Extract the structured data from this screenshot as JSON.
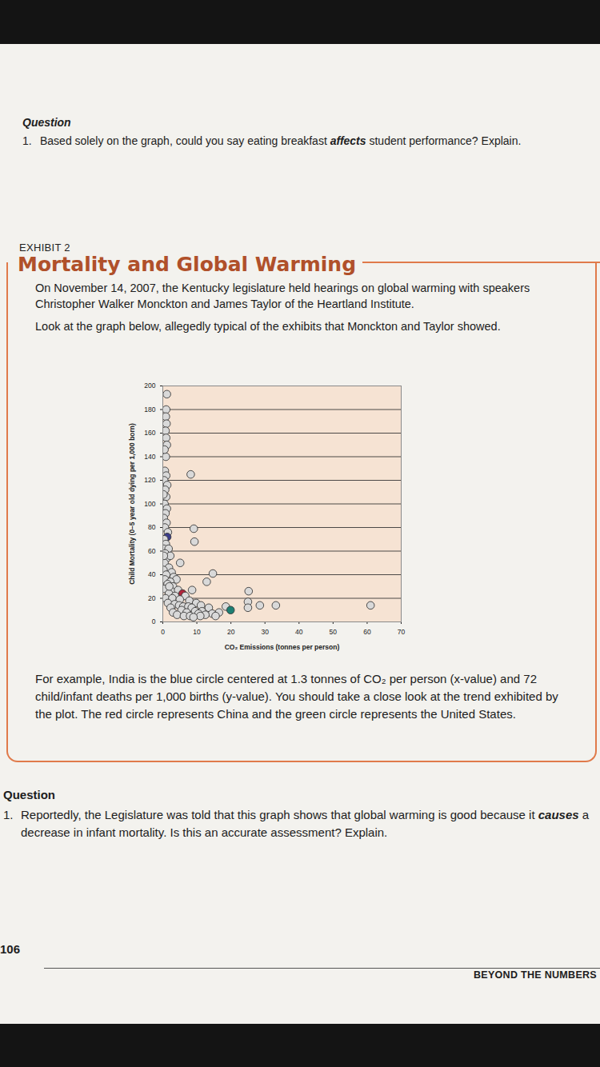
{
  "question_top": {
    "heading": "Question",
    "number": "1.",
    "text_before": "Based solely on the graph, could you say eating breakfast ",
    "emphasis": "affects",
    "text_after": " student performance? Explain."
  },
  "exhibit": {
    "label": "EXHIBIT 2",
    "title": "Mortality and Global Warming",
    "paragraphs": [
      "On November 14, 2007, the Kentucky legislature held hearings on global warming with speakers Christopher Walker Monckton and James Taylor of the Heartland Institute.",
      "Look at the graph below, allegedly typical of the exhibits that Monckton and Taylor showed."
    ],
    "caption": "For example, India is the blue circle centered at 1.3 tonnes of CO₂ per person (x-value) and 72 child/infant deaths per 1,000 births (y-value). You should take a close look at the trend exhibited by the plot. The red circle represents China and the green circle represents the United States."
  },
  "chart_data": {
    "type": "scatter",
    "x_label": "CO₂ Emissions (tonnes per person)",
    "y_label": "Child Mortality (0–5 year old dying per 1,000 born)",
    "x": [
      1.2,
      1.0,
      0.9,
      1.1,
      0.8,
      1.0,
      1.2,
      0.9,
      0.6,
      1.0,
      8.2,
      0.4,
      1.3,
      0.7,
      1.0,
      0.5,
      1.2,
      0.8,
      0.3,
      1.1,
      0.6,
      9.1,
      1.5,
      1.3,
      0.4,
      9.3,
      0.9,
      0.3,
      1.7,
      0.7,
      1.2,
      2.2,
      5.1,
      0.5,
      1.8,
      0.2,
      2.6,
      14.7,
      1.0,
      3.2,
      0.6,
      4.0,
      2.2,
      12.9,
      1.4,
      3.0,
      0.4,
      8.6,
      2.5,
      4.5,
      25.2,
      5.8,
      1.8,
      3.6,
      6.6,
      0.8,
      2.8,
      5.0,
      7.8,
      25.0,
      1.5,
      9.8,
      3.5,
      4.8,
      11.2,
      28.5,
      33.2,
      61.0,
      6.0,
      7.5,
      18.5,
      2.3,
      8.5,
      13.5,
      25.0,
      5.5,
      19.9,
      9.5,
      11.5,
      3.0,
      7.0,
      16.5,
      10.5,
      14.5,
      4.2,
      12.5,
      6.2,
      8.0,
      11.0,
      15.5,
      9.0,
      0.3,
      1.9,
      0.2,
      0.5
    ],
    "values": [
      193,
      180,
      174,
      168,
      162,
      156,
      150,
      140,
      128,
      124,
      125,
      120,
      116,
      112,
      106,
      100,
      96,
      92,
      88,
      84,
      80,
      79,
      76,
      72,
      70,
      68,
      66,
      62,
      62,
      58,
      54,
      56,
      50,
      50,
      46,
      44,
      42,
      41,
      40,
      38,
      36,
      36,
      34,
      34,
      32,
      30,
      28,
      27,
      26,
      27,
      26,
      24,
      24,
      22,
      22,
      20,
      20,
      19,
      18,
      17,
      16,
      16,
      15,
      14,
      14,
      14,
      14,
      14,
      13,
      13,
      13,
      12,
      12,
      12,
      12,
      10,
      10,
      9,
      9,
      8,
      8,
      8,
      7,
      7,
      6,
      6,
      5,
      5,
      5,
      5,
      4,
      56,
      30,
      108,
      146
    ],
    "colors": [
      "#d9d9d9",
      "#d9d9d9",
      "#d9d9d9",
      "#d9d9d9",
      "#d9d9d9",
      "#d9d9d9",
      "#d9d9d9",
      "#d9d9d9",
      "#d9d9d9",
      "#d9d9d9",
      "#d9d9d9",
      "#d9d9d9",
      "#d9d9d9",
      "#d9d9d9",
      "#d9d9d9",
      "#d9d9d9",
      "#d9d9d9",
      "#d9d9d9",
      "#d9d9d9",
      "#d9d9d9",
      "#d9d9d9",
      "#d9d9d9",
      "#d9d9d9",
      "#3b3d8c",
      "#d9d9d9",
      "#d9d9d9",
      "#d9d9d9",
      "#d9d9d9",
      "#d9d9d9",
      "#d9d9d9",
      "#d9d9d9",
      "#d9d9d9",
      "#d9d9d9",
      "#d9d9d9",
      "#d9d9d9",
      "#d9d9d9",
      "#d9d9d9",
      "#d9d9d9",
      "#d9d9d9",
      "#d9d9d9",
      "#d9d9d9",
      "#d9d9d9",
      "#d9d9d9",
      "#d9d9d9",
      "#d9d9d9",
      "#d9d9d9",
      "#d9d9d9",
      "#d9d9d9",
      "#d9d9d9",
      "#d9d9d9",
      "#d9d9d9",
      "#b0263c",
      "#d9d9d9",
      "#d9d9d9",
      "#d9d9d9",
      "#d9d9d9",
      "#d9d9d9",
      "#d9d9d9",
      "#d9d9d9",
      "#d9d9d9",
      "#d9d9d9",
      "#d9d9d9",
      "#d9d9d9",
      "#d9d9d9",
      "#d9d9d9",
      "#d9d9d9",
      "#d9d9d9",
      "#d9d9d9",
      "#d9d9d9",
      "#d9d9d9",
      "#d9d9d9",
      "#d9d9d9",
      "#d9d9d9",
      "#d9d9d9",
      "#d9d9d9",
      "#d9d9d9",
      "#1d7f73",
      "#d9d9d9",
      "#d9d9d9",
      "#d9d9d9",
      "#d9d9d9",
      "#d9d9d9",
      "#d9d9d9",
      "#d9d9d9",
      "#d9d9d9",
      "#d9d9d9",
      "#d9d9d9",
      "#d9d9d9",
      "#d9d9d9",
      "#d9d9d9",
      "#d9d9d9",
      "#d9d9d9",
      "#d9d9d9",
      "#d9d9d9",
      "#d9d9d9"
    ],
    "marker": "circle",
    "xlim": [
      0,
      70
    ],
    "xticks": [
      0,
      10,
      20,
      30,
      40,
      50,
      60,
      70
    ],
    "ylim": [
      0,
      200
    ],
    "yticks": [
      0,
      20,
      40,
      60,
      80,
      100,
      120,
      140,
      160,
      180,
      200
    ],
    "grid": "y"
  },
  "question_bottom": {
    "heading": "Question",
    "number": "1.",
    "text_before": "Reportedly, the Legislature was told that this graph shows that global warming is good because it ",
    "emphasis": "causes",
    "text_after": " a decrease in infant mortality. Is this an accurate assessment? Explain."
  },
  "footer": {
    "page": "106",
    "book": "BEYOND THE NUMBERS"
  }
}
